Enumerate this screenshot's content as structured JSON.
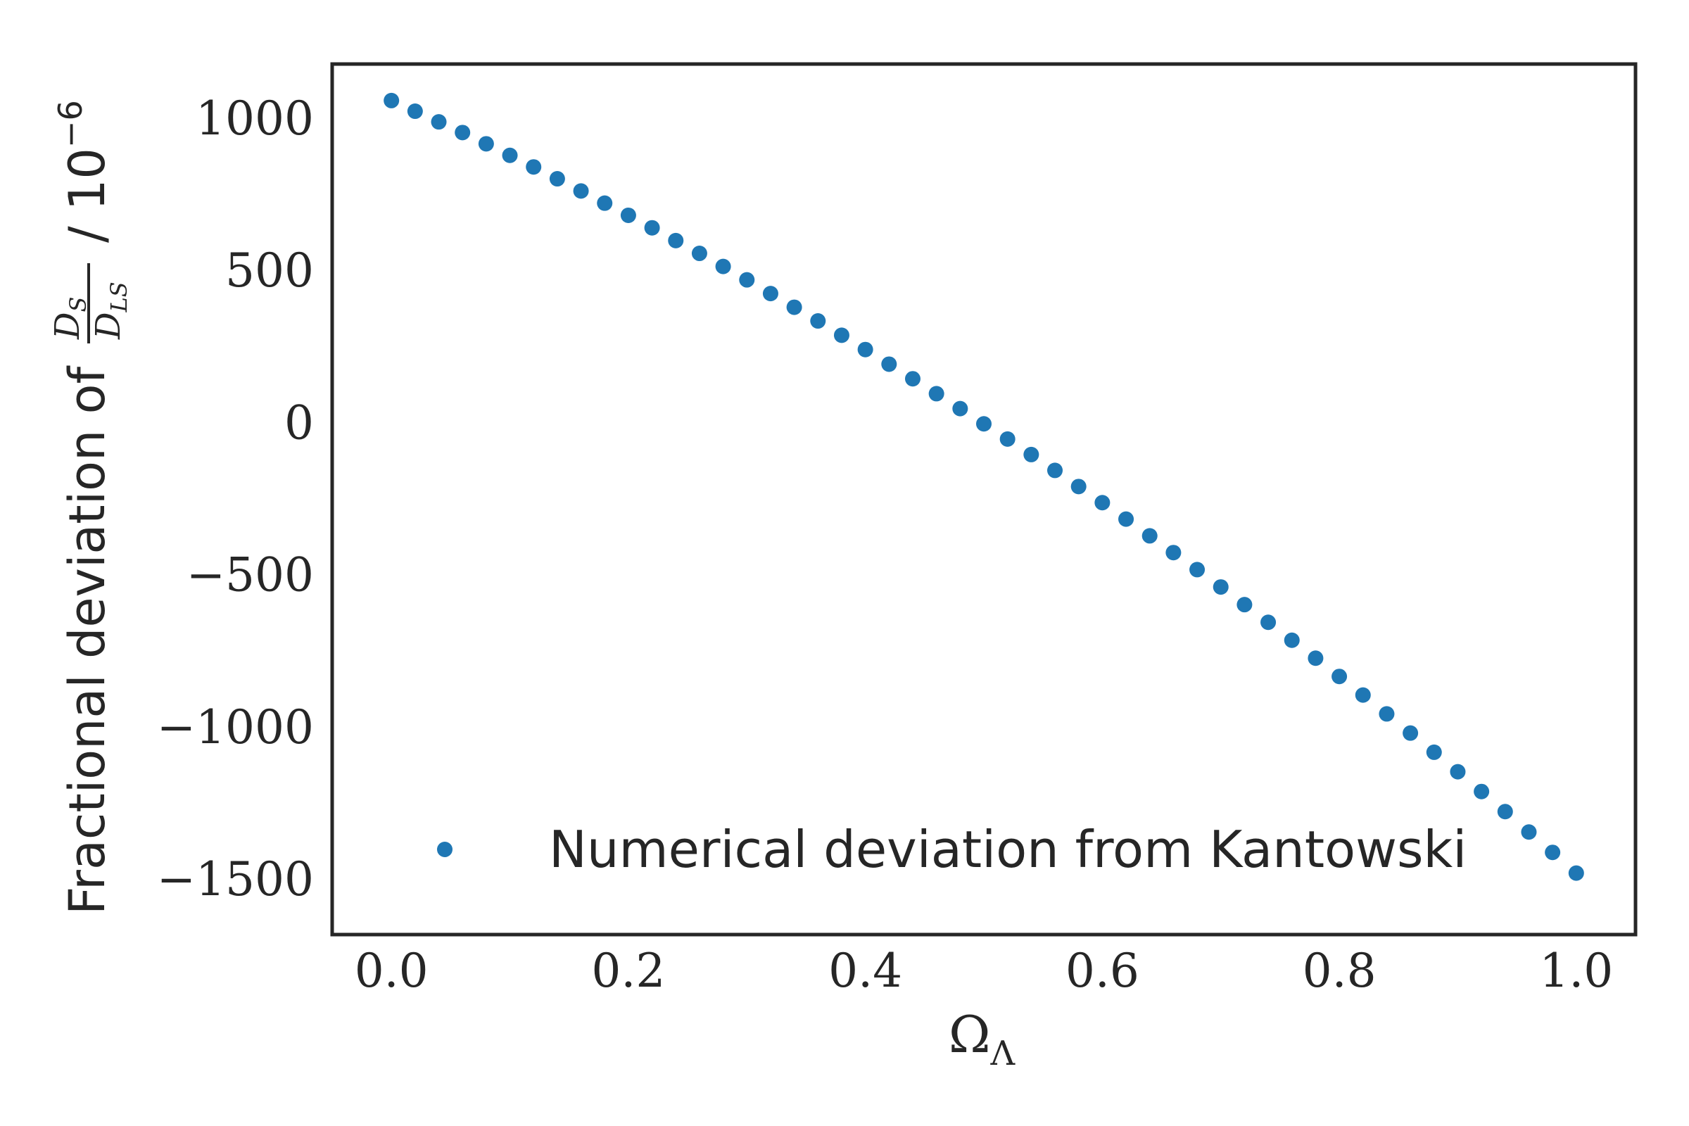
{
  "chart_data": {
    "type": "scatter",
    "xlabel": "Ω",
    "xlabel_sub": "Λ",
    "ylabel_text": "Fractional deviation of",
    "ylabel_num": "D",
    "ylabel_num_sub": "S",
    "ylabel_den": "D",
    "ylabel_den_sub": "LS",
    "ylabel_unit": "/ 10",
    "ylabel_exp": "−6",
    "xlim": [
      -0.05,
      1.05
    ],
    "ylim": [
      -1680,
      1180
    ],
    "x_ticks": [
      {
        "value": 0.0,
        "label": "0.0"
      },
      {
        "value": 0.2,
        "label": "0.2"
      },
      {
        "value": 0.4,
        "label": "0.4"
      },
      {
        "value": 0.6,
        "label": "0.6"
      },
      {
        "value": 0.8,
        "label": "0.8"
      },
      {
        "value": 1.0,
        "label": "1.0"
      }
    ],
    "y_ticks": [
      {
        "value": 1000,
        "label": "1000"
      },
      {
        "value": 500,
        "label": "500"
      },
      {
        "value": 0,
        "label": "0"
      },
      {
        "value": -500,
        "label": "−500"
      },
      {
        "value": -1000,
        "label": "−1000"
      },
      {
        "value": -1500,
        "label": "−1500"
      }
    ],
    "grid": false,
    "legend_position": "bottom",
    "series": [
      {
        "name": "Numerical deviation from Kantowski",
        "color": "#1f77b4",
        "x": [
          0.0,
          0.02,
          0.04,
          0.06,
          0.08,
          0.1,
          0.12,
          0.14,
          0.16,
          0.18,
          0.2,
          0.22,
          0.24,
          0.26,
          0.28,
          0.3,
          0.32,
          0.34,
          0.36,
          0.38,
          0.4,
          0.42,
          0.44,
          0.46,
          0.48,
          0.5,
          0.52,
          0.54,
          0.56,
          0.58,
          0.6,
          0.62,
          0.64,
          0.66,
          0.68,
          0.7,
          0.72,
          0.74,
          0.76,
          0.78,
          0.8,
          0.82,
          0.84,
          0.86,
          0.88,
          0.9,
          0.92,
          0.94,
          0.96,
          0.98,
          1.0
        ],
        "y": [
          1060,
          1025,
          990,
          955,
          918,
          880,
          842,
          803,
          763,
          723,
          683,
          642,
          600,
          558,
          515,
          471,
          426,
          381,
          336,
          289,
          242,
          194,
          146,
          97,
          48,
          -2,
          -52,
          -103,
          -155,
          -208,
          -261,
          -315,
          -370,
          -425,
          -481,
          -538,
          -596,
          -654,
          -713,
          -772,
          -832,
          -893,
          -955,
          -1018,
          -1081,
          -1145,
          -1210,
          -1276,
          -1343,
          -1410,
          -1478
        ]
      }
    ]
  }
}
